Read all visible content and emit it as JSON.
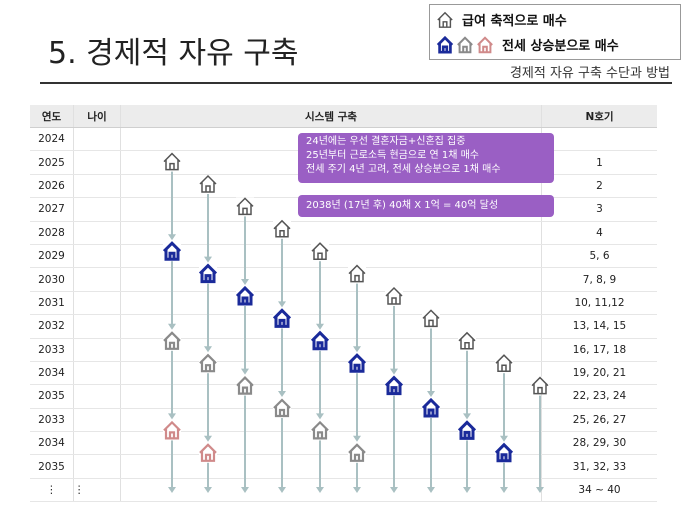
{
  "title": "5. 경제적 자유 구축",
  "subtitle": "경제적 자유 구축 수단과 방법",
  "legend": {
    "row1_label": "급여 축적으로 매수",
    "row2_label": "전세 상승분으로 매수"
  },
  "table": {
    "headers": {
      "year": "연도",
      "age": "나이",
      "system": "시스템 구축",
      "n": "N호기"
    },
    "rows": [
      {
        "year": "2024",
        "n": ""
      },
      {
        "year": "2025",
        "n": "1"
      },
      {
        "year": "2026",
        "n": "2"
      },
      {
        "year": "2027",
        "n": "3"
      },
      {
        "year": "2028",
        "n": "4"
      },
      {
        "year": "2029",
        "n": "5, 6"
      },
      {
        "year": "2030",
        "n": "7, 8, 9"
      },
      {
        "year": "2031",
        "n": "10, 11,12"
      },
      {
        "year": "2032",
        "n": "13, 14, 15"
      },
      {
        "year": "2033",
        "n": "16, 17, 18"
      },
      {
        "year": "2034",
        "n": "19, 20, 21"
      },
      {
        "year": "2035",
        "n": "22, 23, 24"
      },
      {
        "year": "2033",
        "n": "25, 26, 27"
      },
      {
        "year": "2034",
        "n": "28, 29, 30"
      },
      {
        "year": "2035",
        "n": "31, 32, 33"
      },
      {
        "year": "⋮",
        "age": "⋮",
        "n": "34 ~ 40"
      }
    ]
  },
  "notes": {
    "line1": "24년에는 우선 결혼자금+신혼집 집중",
    "line2": "25년부터 근로소득 현금으로 연 1채 매수",
    "line3": "전세 주기 4년 고려, 전세 상승분으로 1채 매수",
    "goal": "2038년 (17년  후) 40채 X 1억 = 40억 달성"
  },
  "colors": {
    "note_bg": "#9a5fc4",
    "house_outline": "#555555",
    "house_blue": "#1a2a9a",
    "house_gray": "#8a8a8a",
    "house_pink": "#d08a8a",
    "arrow": "#a9c0c2"
  },
  "icons": {
    "outline": "house-outline-icon",
    "blue": "house-blue-icon",
    "gray": "house-gray-icon",
    "pink": "house-pink-icon"
  }
}
